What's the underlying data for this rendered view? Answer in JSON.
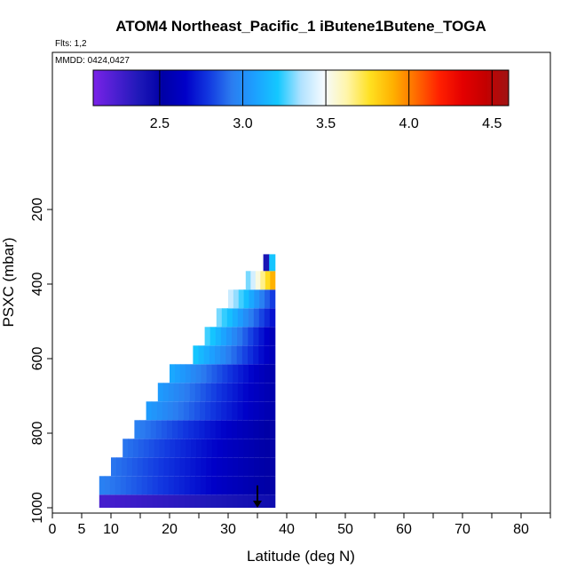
{
  "chart_data": {
    "type": "heatmap",
    "title": "ATOM4 Northeast_Pacific_1 iButene1Butene_TOGA",
    "subtitle": "Flts: 1,2",
    "annotation": "MMDD: 0424,0427",
    "xlabel": "Latitude (deg N)",
    "ylabel": "PSXC (mbar)",
    "xlim": [
      0,
      85
    ],
    "ylim": [
      1000,
      0
    ],
    "x_ticks": [
      0,
      5,
      10,
      20,
      30,
      40,
      50,
      60,
      70,
      80
    ],
    "x_minor_ticks": [
      0,
      5,
      10,
      15,
      20,
      25,
      30,
      35,
      40,
      45,
      50,
      55,
      60,
      65,
      70,
      75,
      80,
      85
    ],
    "y_ticks": [
      200,
      400,
      600,
      800,
      1000
    ],
    "colorbar": {
      "range": [
        2.1,
        4.6
      ],
      "ticks": [
        "2.5",
        "3.0",
        "3.5",
        "4.0",
        "4.5"
      ],
      "tick_values": [
        2.5,
        3.0,
        3.5,
        4.0,
        4.5
      ],
      "colors": [
        "#7a22e8",
        "#4a1fd0",
        "#1e18b8",
        "#0000a6",
        "#0000c8",
        "#1238e0",
        "#2b7cf0",
        "#1ca0ff",
        "#14c8ff",
        "#b0e2ff",
        "#f6fbff",
        "#fff5a8",
        "#ffe020",
        "#ffb000",
        "#ff6a00",
        "#ff2000",
        "#e40000",
        "#c40000",
        "#a01414"
      ]
    },
    "grid": false,
    "rows": [
      {
        "p_top": 965,
        "p_bot": 1000,
        "x_start": 8,
        "x_end": 38,
        "v_start": 2.25,
        "v_end": 2.45
      },
      {
        "p_top": 915,
        "p_bot": 965,
        "x_start": 8,
        "x_end": 38,
        "v_start": 2.95,
        "v_end": 2.5
      },
      {
        "p_top": 865,
        "p_bot": 915,
        "x_start": 10,
        "x_end": 38,
        "v_start": 2.92,
        "v_end": 2.5
      },
      {
        "p_top": 815,
        "p_bot": 865,
        "x_start": 12,
        "x_end": 38,
        "v_start": 2.92,
        "v_end": 2.5
      },
      {
        "p_top": 765,
        "p_bot": 815,
        "x_start": 14,
        "x_end": 38,
        "v_start": 2.95,
        "v_end": 2.5
      },
      {
        "p_top": 715,
        "p_bot": 765,
        "x_start": 16,
        "x_end": 38,
        "v_start": 3.05,
        "v_end": 2.55
      },
      {
        "p_top": 665,
        "p_bot": 715,
        "x_start": 18,
        "x_end": 38,
        "v_start": 3.05,
        "v_end": 2.55
      },
      {
        "p_top": 615,
        "p_bot": 665,
        "x_start": 20,
        "x_end": 38,
        "v_start": 3.1,
        "v_end": 2.55
      },
      {
        "p_top": 565,
        "p_bot": 615,
        "x_start": 24,
        "x_end": 38,
        "v_start": 3.2,
        "v_end": 2.6
      },
      {
        "p_top": 515,
        "p_bot": 565,
        "x_start": 26,
        "x_end": 38,
        "v_start": 3.25,
        "v_end": 2.6
      },
      {
        "p_top": 465,
        "p_bot": 515,
        "x_start": 28,
        "x_end": 38,
        "v_start": 3.3,
        "v_end": 2.7
      },
      {
        "p_top": 415,
        "p_bot": 465,
        "x_start": 30,
        "x_end": 38,
        "v_start": 3.4,
        "v_end": 2.8
      },
      {
        "p_top": 365,
        "p_bot": 415,
        "x_start": 33,
        "x_end": 38,
        "v_start": 3.3,
        "v_end": 3.9
      },
      {
        "p_top": 320,
        "p_bot": 365,
        "x_start": 36,
        "x_end": 38,
        "v_start": 2.4,
        "v_end": 3.2
      }
    ],
    "arrow": {
      "x": 35,
      "p_from": 940,
      "p_to": 1000
    }
  }
}
